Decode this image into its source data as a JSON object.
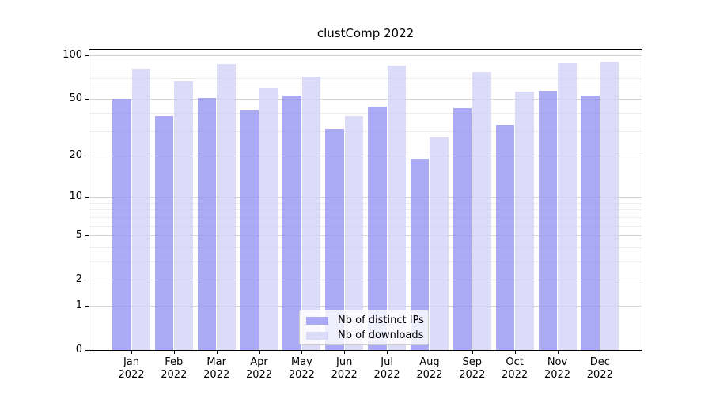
{
  "chart_data": {
    "type": "bar",
    "title": "clustComp 2022",
    "categories": [
      "Jan",
      "Feb",
      "Mar",
      "Apr",
      "May",
      "Jun",
      "Jul",
      "Aug",
      "Sep",
      "Oct",
      "Nov",
      "Dec"
    ],
    "x_year_label": "2022",
    "series": [
      {
        "name": "Nb of distinct IPs",
        "color": "#9595f2",
        "values": [
          50,
          38,
          51,
          42,
          53,
          31,
          44,
          19,
          43,
          33,
          57,
          53
        ]
      },
      {
        "name": "Nb of downloads",
        "color": "#d3d3f6",
        "values": [
          81,
          66,
          87,
          59,
          71,
          38,
          85,
          27,
          77,
          56,
          88,
          91
        ]
      }
    ],
    "yscale": "log1p",
    "y_ticks": [
      0,
      1,
      2,
      5,
      10,
      20,
      50,
      100
    ],
    "y_minor_gridlines": [
      3,
      4,
      6,
      7,
      8,
      9,
      30,
      40,
      60,
      70,
      80,
      90
    ],
    "ylim": [
      0,
      110
    ],
    "grid": true,
    "legend_position": "lower-center",
    "colors": {
      "grid_major": "#d4d4d4",
      "grid_minor": "#ececec",
      "spine": "#000000",
      "text": "#000000",
      "legend_border": "#cccccc",
      "background": "#ffffff"
    }
  }
}
